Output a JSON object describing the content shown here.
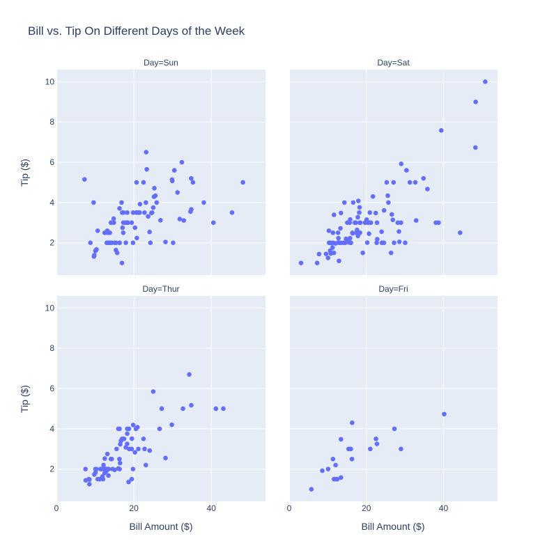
{
  "chart_data": {
    "type": "scatter",
    "title": "Bill vs. Tip On Different Days of the Week",
    "xlabel": "Bill Amount ($)",
    "ylabel": "Tip ($)",
    "xlim": [
      0,
      54
    ],
    "ylim": [
      0.4,
      10.6
    ],
    "x_ticks": [
      0,
      20,
      40
    ],
    "y_ticks": [
      2,
      4,
      6,
      8,
      10
    ],
    "grid": true,
    "marker_color": "#636efa",
    "plot_bg": "#e5ecf6",
    "panels": [
      {
        "label": "Day=Sun",
        "points": [
          [
            7.25,
            5.15
          ],
          [
            8.77,
            2.0
          ],
          [
            9.6,
            4.0
          ],
          [
            9.68,
            1.32
          ],
          [
            9.78,
            1.39
          ],
          [
            10.07,
            1.6
          ],
          [
            10.33,
            1.67
          ],
          [
            10.34,
            1.66
          ],
          [
            10.65,
            2.6
          ],
          [
            12.46,
            2.5
          ],
          [
            13.0,
            2.0
          ],
          [
            13.13,
            2.6
          ],
          [
            13.27,
            2.5
          ],
          [
            13.39,
            2.0
          ],
          [
            13.79,
            2.5
          ],
          [
            13.81,
            2.0
          ],
          [
            14.07,
            3.0
          ],
          [
            14.26,
            2.0
          ],
          [
            14.78,
            3.2
          ],
          [
            14.83,
            3.0
          ],
          [
            15.04,
            2.0
          ],
          [
            15.36,
            1.64
          ],
          [
            15.38,
            2.0
          ],
          [
            15.69,
            1.5
          ],
          [
            16.29,
            3.71
          ],
          [
            16.31,
            2.0
          ],
          [
            16.32,
            2.0
          ],
          [
            16.82,
            4.0
          ],
          [
            16.93,
            1.0
          ],
          [
            16.97,
            3.5
          ],
          [
            17.07,
            2.75
          ],
          [
            17.26,
            2.5
          ],
          [
            17.29,
            3.0
          ],
          [
            17.31,
            3.5
          ],
          [
            17.82,
            3.0
          ],
          [
            17.92,
            2.0
          ],
          [
            18.24,
            3.0
          ],
          [
            18.29,
            3.5
          ],
          [
            18.43,
            3.0
          ],
          [
            19.44,
            3.0
          ],
          [
            19.77,
            2.0
          ],
          [
            19.82,
            3.5
          ],
          [
            20.29,
            2.75
          ],
          [
            20.65,
            3.5
          ],
          [
            20.69,
            5.0
          ],
          [
            20.76,
            2.24
          ],
          [
            21.01,
            3.5
          ],
          [
            21.5,
            3.5
          ],
          [
            21.58,
            3.92
          ],
          [
            22.49,
            5.0
          ],
          [
            22.75,
            3.5
          ],
          [
            23.1,
            4.0
          ],
          [
            23.17,
            6.5
          ],
          [
            23.33,
            5.65
          ],
          [
            23.68,
            3.31
          ],
          [
            24.06,
            2.54
          ],
          [
            24.27,
            2.0
          ],
          [
            24.52,
            3.48
          ],
          [
            24.71,
            3.5
          ],
          [
            25.0,
            3.75
          ],
          [
            25.21,
            4.29
          ],
          [
            25.29,
            4.71
          ],
          [
            25.56,
            4.34
          ],
          [
            25.89,
            4.0
          ],
          [
            26.88,
            3.12
          ],
          [
            28.17,
            2.04
          ],
          [
            29.93,
            5.07
          ],
          [
            29.85,
            5.14
          ],
          [
            30.14,
            2.0
          ],
          [
            30.46,
            5.6
          ],
          [
            31.27,
            4.5
          ],
          [
            31.85,
            3.18
          ],
          [
            32.4,
            6.0
          ],
          [
            32.9,
            3.11
          ],
          [
            34.63,
            3.55
          ],
          [
            34.81,
            5.2
          ],
          [
            34.83,
            3.66
          ],
          [
            35.26,
            5.0
          ],
          [
            38.07,
            4.0
          ],
          [
            40.55,
            3.0
          ],
          [
            45.35,
            3.5
          ],
          [
            48.17,
            5.0
          ]
        ]
      },
      {
        "label": "Day=Sat",
        "points": [
          [
            3.07,
            1.0
          ],
          [
            7.25,
            1.0
          ],
          [
            7.74,
            1.44
          ],
          [
            9.55,
            1.45
          ],
          [
            10.07,
            1.25
          ],
          [
            10.29,
            2.6
          ],
          [
            10.33,
            2.0
          ],
          [
            10.59,
            1.61
          ],
          [
            10.63,
            2.0
          ],
          [
            10.77,
            1.47
          ],
          [
            11.02,
            1.98
          ],
          [
            11.24,
            1.76
          ],
          [
            11.35,
            2.5
          ],
          [
            11.38,
            2.0
          ],
          [
            11.59,
            1.5
          ],
          [
            11.61,
            3.39
          ],
          [
            12.02,
            1.97
          ],
          [
            12.66,
            2.5
          ],
          [
            12.74,
            2.01
          ],
          [
            12.76,
            2.23
          ],
          [
            12.9,
            1.1
          ],
          [
            13.0,
            2.0
          ],
          [
            13.03,
            2.0
          ],
          [
            13.28,
            2.72
          ],
          [
            13.42,
            3.48
          ],
          [
            13.51,
            2.0
          ],
          [
            14.15,
            2.0
          ],
          [
            14.31,
            4.0
          ],
          [
            14.52,
            2.0
          ],
          [
            14.73,
            2.2
          ],
          [
            15.01,
            2.09
          ],
          [
            15.06,
            3.0
          ],
          [
            15.48,
            2.02
          ],
          [
            15.69,
            3.0
          ],
          [
            15.81,
            3.16
          ],
          [
            15.98,
            2.0
          ],
          [
            16.0,
            2.0
          ],
          [
            16.4,
            2.5
          ],
          [
            16.45,
            2.47
          ],
          [
            16.58,
            4.0
          ],
          [
            16.99,
            3.0
          ],
          [
            17.26,
            3.0
          ],
          [
            17.47,
            2.5
          ],
          [
            17.59,
            2.64
          ],
          [
            17.78,
            3.27
          ],
          [
            17.81,
            2.34
          ],
          [
            17.92,
            4.08
          ],
          [
            18.15,
            3.5
          ],
          [
            18.28,
            3.0
          ],
          [
            18.35,
            2.5
          ],
          [
            18.43,
            3.0
          ],
          [
            19.08,
            1.5
          ],
          [
            19.65,
            3.0
          ],
          [
            19.81,
            3.0
          ],
          [
            20.08,
            3.15
          ],
          [
            20.23,
            2.01
          ],
          [
            20.45,
            3.0
          ],
          [
            20.69,
            2.45
          ],
          [
            20.9,
            3.5
          ],
          [
            21.16,
            3.0
          ],
          [
            21.7,
            4.3
          ],
          [
            22.42,
            3.48
          ],
          [
            22.67,
            2.0
          ],
          [
            22.82,
            2.18
          ],
          [
            23.95,
            2.55
          ],
          [
            24.01,
            2.0
          ],
          [
            24.55,
            2.0
          ],
          [
            24.59,
            3.61
          ],
          [
            25.28,
            5.0
          ],
          [
            25.56,
            4.34
          ],
          [
            25.71,
            4.0
          ],
          [
            26.41,
            1.5
          ],
          [
            26.59,
            3.41
          ],
          [
            27.05,
            5.0
          ],
          [
            27.18,
            2.0
          ],
          [
            28.15,
            3.0
          ],
          [
            28.44,
            2.56
          ],
          [
            28.55,
            2.05
          ],
          [
            28.97,
            3.0
          ],
          [
            29.03,
            5.92
          ],
          [
            30.06,
            2.0
          ],
          [
            30.4,
            5.6
          ],
          [
            31.27,
            5.0
          ],
          [
            32.68,
            5.0
          ],
          [
            32.9,
            3.11
          ],
          [
            34.81,
            5.2
          ],
          [
            35.83,
            4.67
          ],
          [
            38.01,
            3.0
          ],
          [
            38.73,
            3.0
          ],
          [
            39.42,
            7.58
          ],
          [
            44.3,
            2.5
          ],
          [
            48.27,
            6.73
          ],
          [
            48.33,
            9.0
          ],
          [
            50.81,
            10.0
          ],
          [
            22.76,
            3.0
          ],
          [
            15.77,
            2.23
          ],
          [
            18.24,
            3.76
          ],
          [
            21.01,
            3.0
          ],
          [
            26.86,
            3.14
          ]
        ]
      },
      {
        "label": "Day=Thur",
        "points": [
          [
            7.51,
            2.0
          ],
          [
            7.56,
            1.44
          ],
          [
            8.35,
            1.5
          ],
          [
            8.51,
            1.25
          ],
          [
            8.52,
            1.48
          ],
          [
            9.78,
            1.73
          ],
          [
            10.07,
            1.83
          ],
          [
            10.34,
            2.0
          ],
          [
            10.65,
            1.5
          ],
          [
            11.17,
            1.5
          ],
          [
            11.38,
            2.0
          ],
          [
            11.59,
            2.0
          ],
          [
            11.87,
            1.63
          ],
          [
            12.03,
            1.5
          ],
          [
            12.16,
            2.2
          ],
          [
            12.26,
            2.0
          ],
          [
            12.43,
            1.8
          ],
          [
            12.48,
            2.52
          ],
          [
            12.69,
            2.0
          ],
          [
            13.0,
            2.0
          ],
          [
            13.03,
            2.0
          ],
          [
            13.16,
            2.75
          ],
          [
            13.37,
            2.0
          ],
          [
            13.42,
            1.68
          ],
          [
            13.51,
            2.0
          ],
          [
            14.07,
            2.5
          ],
          [
            14.26,
            2.5
          ],
          [
            14.52,
            2.0
          ],
          [
            15.04,
            1.96
          ],
          [
            15.53,
            3.0
          ],
          [
            15.98,
            2.03
          ],
          [
            16.27,
            2.5
          ],
          [
            16.43,
            2.3
          ],
          [
            16.47,
            3.23
          ],
          [
            16.66,
            3.4
          ],
          [
            16.97,
            3.5
          ],
          [
            17.47,
            3.5
          ],
          [
            17.92,
            3.08
          ],
          [
            18.26,
            3.25
          ],
          [
            18.28,
            4.0
          ],
          [
            18.64,
            1.36
          ],
          [
            18.71,
            4.0
          ],
          [
            18.78,
            3.0
          ],
          [
            19.44,
            3.0
          ],
          [
            19.49,
            3.51
          ],
          [
            19.77,
            2.0
          ],
          [
            20.27,
            2.83
          ],
          [
            20.53,
            4.0
          ],
          [
            20.92,
            4.08
          ],
          [
            21.16,
            3.0
          ],
          [
            22.76,
            3.0
          ],
          [
            24.08,
            2.92
          ],
          [
            25.0,
            5.85
          ],
          [
            26.64,
            4.0
          ],
          [
            27.2,
            5.0
          ],
          [
            28.17,
            2.55
          ],
          [
            29.8,
            4.2
          ],
          [
            32.68,
            5.0
          ],
          [
            34.3,
            6.7
          ],
          [
            41.19,
            5.0
          ],
          [
            43.11,
            5.0
          ],
          [
            16.29,
            4.0
          ],
          [
            23.1,
            2.2
          ],
          [
            18.29,
            3.76
          ],
          [
            19.82,
            4.19
          ],
          [
            12.9,
            1.9
          ],
          [
            10.09,
            2.0
          ],
          [
            16.0,
            4.0
          ],
          [
            19.44,
            1.5
          ],
          [
            22.49,
            3.5
          ],
          [
            34.83,
            5.17
          ],
          [
            16.31,
            2.0
          ]
        ]
      },
      {
        "label": "Day=Fri",
        "points": [
          [
            5.75,
            1.0
          ],
          [
            8.58,
            1.92
          ],
          [
            10.09,
            2.0
          ],
          [
            11.35,
            2.5
          ],
          [
            11.61,
            1.5
          ],
          [
            12.03,
            2.2
          ],
          [
            12.16,
            1.5
          ],
          [
            12.46,
            1.5
          ],
          [
            13.42,
            1.58
          ],
          [
            13.42,
            3.48
          ],
          [
            15.38,
            3.0
          ],
          [
            15.98,
            3.0
          ],
          [
            16.27,
            2.5
          ],
          [
            16.32,
            4.3
          ],
          [
            21.01,
            3.0
          ],
          [
            22.49,
            3.5
          ],
          [
            22.75,
            3.25
          ],
          [
            27.28,
            4.0
          ],
          [
            28.97,
            3.0
          ],
          [
            40.17,
            4.73
          ]
        ]
      }
    ]
  }
}
